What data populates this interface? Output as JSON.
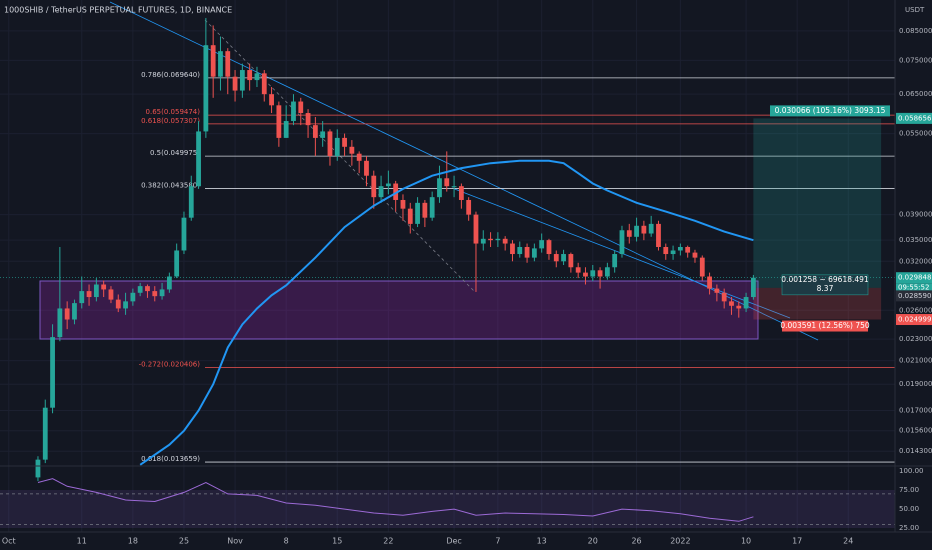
{
  "header": {
    "title": "1000SHIB / TetherUS PERPETUAL FUTURES, 1D, BINANCE",
    "currency": "USDT"
  },
  "chart_data": {
    "type": "candlestick",
    "log_scale": true,
    "xlim": [
      -1.2,
      121.4
    ],
    "ylim": [
      0.01349,
      0.0969
    ],
    "xticks": [
      {
        "value": 0,
        "label": "Oct"
      },
      {
        "value": 10,
        "label": "11"
      },
      {
        "value": 17,
        "label": "18"
      },
      {
        "value": 24,
        "label": "25"
      },
      {
        "value": 31,
        "label": "Nov"
      },
      {
        "value": 38,
        "label": "8"
      },
      {
        "value": 45,
        "label": "15"
      },
      {
        "value": 52,
        "label": "22"
      },
      {
        "value": 61,
        "label": "Dec"
      },
      {
        "value": 67,
        "label": "7"
      },
      {
        "value": 73,
        "label": "13"
      },
      {
        "value": 80,
        "label": "20"
      },
      {
        "value": 86,
        "label": "26"
      },
      {
        "value": 92,
        "label": "2022"
      },
      {
        "value": 101,
        "label": "10"
      },
      {
        "value": 108,
        "label": "17"
      },
      {
        "value": 115,
        "label": "24"
      }
    ],
    "yticks": [
      {
        "value": 0.085,
        "label": "0.085000"
      },
      {
        "value": 0.075,
        "label": "0.075000"
      },
      {
        "value": 0.065,
        "label": "0.065000"
      },
      {
        "value": 0.055,
        "label": "0.055000"
      },
      {
        "value": 0.039,
        "label": "0.039000"
      },
      {
        "value": 0.035,
        "label": "0.035000"
      },
      {
        "value": 0.032,
        "label": "0.032000"
      },
      {
        "value": 0.026,
        "label": "0.026000"
      },
      {
        "value": 0.023,
        "label": "0.023000"
      },
      {
        "value": 0.021,
        "label": "0.021000"
      },
      {
        "value": 0.019,
        "label": "0.019000"
      },
      {
        "value": 0.017,
        "label": "0.017000"
      },
      {
        "value": 0.0156,
        "label": "0.015600"
      },
      {
        "value": 0.0143,
        "label": "0.014300"
      }
    ],
    "up_color": "#26a69a",
    "down_color": "#ef5350",
    "candles": [
      [
        4,
        0.0128,
        0.014,
        0.0126,
        0.0138
      ],
      [
        5,
        0.0138,
        0.0178,
        0.0136,
        0.0172
      ],
      [
        6,
        0.0172,
        0.0245,
        0.0168,
        0.0232
      ],
      [
        7,
        0.0232,
        0.034,
        0.0228,
        0.0262
      ],
      [
        8,
        0.0262,
        0.027,
        0.024,
        0.025
      ],
      [
        9,
        0.025,
        0.0272,
        0.0245,
        0.0268
      ],
      [
        10,
        0.0268,
        0.03,
        0.0262,
        0.0282
      ],
      [
        11,
        0.0282,
        0.029,
        0.0265,
        0.0275
      ],
      [
        12,
        0.0275,
        0.0298,
        0.027,
        0.029
      ],
      [
        13,
        0.029,
        0.0295,
        0.0275,
        0.0284
      ],
      [
        14,
        0.0284,
        0.0288,
        0.0268,
        0.0272
      ],
      [
        15,
        0.0272,
        0.0278,
        0.0258,
        0.0262
      ],
      [
        16,
        0.0262,
        0.028,
        0.0255,
        0.027
      ],
      [
        17,
        0.027,
        0.0285,
        0.0265,
        0.028
      ],
      [
        18,
        0.028,
        0.0292,
        0.0276,
        0.0288
      ],
      [
        19,
        0.0288,
        0.029,
        0.0274,
        0.0282
      ],
      [
        20,
        0.0282,
        0.0288,
        0.027,
        0.0276
      ],
      [
        21,
        0.0276,
        0.0292,
        0.0272,
        0.0284
      ],
      [
        22,
        0.0284,
        0.0305,
        0.028,
        0.03
      ],
      [
        23,
        0.03,
        0.0345,
        0.0298,
        0.0335
      ],
      [
        24,
        0.0335,
        0.0395,
        0.033,
        0.0385
      ],
      [
        25,
        0.0385,
        0.046,
        0.038,
        0.044
      ],
      [
        26,
        0.044,
        0.058,
        0.0435,
        0.0555
      ],
      [
        27,
        0.0555,
        0.0898,
        0.054,
        0.08
      ],
      [
        28,
        0.08,
        0.087,
        0.064,
        0.07
      ],
      [
        29,
        0.07,
        0.083,
        0.066,
        0.078
      ],
      [
        30,
        0.078,
        0.079,
        0.065,
        0.07
      ],
      [
        31,
        0.07,
        0.072,
        0.063,
        0.066
      ],
      [
        32,
        0.066,
        0.074,
        0.064,
        0.072
      ],
      [
        33,
        0.072,
        0.074,
        0.066,
        0.069
      ],
      [
        34,
        0.069,
        0.073,
        0.067,
        0.071
      ],
      [
        35,
        0.071,
        0.072,
        0.063,
        0.065
      ],
      [
        36,
        0.065,
        0.067,
        0.06,
        0.062
      ],
      [
        37,
        0.062,
        0.063,
        0.052,
        0.054
      ],
      [
        38,
        0.054,
        0.062,
        0.054,
        0.058
      ],
      [
        39,
        0.058,
        0.065,
        0.057,
        0.063
      ],
      [
        40,
        0.063,
        0.064,
        0.057,
        0.06
      ],
      [
        41,
        0.06,
        0.061,
        0.054,
        0.057
      ],
      [
        42,
        0.057,
        0.059,
        0.05,
        0.054
      ],
      [
        43,
        0.054,
        0.058,
        0.052,
        0.0555
      ],
      [
        44,
        0.0555,
        0.056,
        0.048,
        0.05
      ],
      [
        45,
        0.05,
        0.056,
        0.049,
        0.054
      ],
      [
        46,
        0.054,
        0.055,
        0.05,
        0.052
      ],
      [
        47,
        0.052,
        0.0535,
        0.048,
        0.0505
      ],
      [
        48,
        0.0505,
        0.051,
        0.0465,
        0.049
      ],
      [
        49,
        0.049,
        0.05,
        0.044,
        0.046
      ],
      [
        50,
        0.046,
        0.047,
        0.04,
        0.042
      ],
      [
        51,
        0.042,
        0.046,
        0.041,
        0.044
      ],
      [
        52,
        0.044,
        0.047,
        0.0425,
        0.0445
      ],
      [
        53,
        0.0445,
        0.045,
        0.0395,
        0.0415
      ],
      [
        54,
        0.0415,
        0.0425,
        0.038,
        0.04
      ],
      [
        55,
        0.04,
        0.041,
        0.036,
        0.0375
      ],
      [
        56,
        0.0375,
        0.042,
        0.037,
        0.041
      ],
      [
        57,
        0.041,
        0.0415,
        0.037,
        0.0385
      ],
      [
        58,
        0.0385,
        0.043,
        0.038,
        0.042
      ],
      [
        59,
        0.042,
        0.048,
        0.041,
        0.0455
      ],
      [
        60,
        0.0455,
        0.051,
        0.043,
        0.044
      ],
      [
        61,
        0.044,
        0.046,
        0.042,
        0.044
      ],
      [
        62,
        0.044,
        0.0445,
        0.04,
        0.0415
      ],
      [
        63,
        0.0415,
        0.042,
        0.038,
        0.039
      ],
      [
        64,
        0.039,
        0.0395,
        0.0281,
        0.0345
      ],
      [
        65,
        0.0345,
        0.0365,
        0.0335,
        0.0352
      ],
      [
        66,
        0.0352,
        0.0362,
        0.034,
        0.035
      ],
      [
        67,
        0.035,
        0.0362,
        0.034,
        0.0352
      ],
      [
        68,
        0.0352,
        0.0356,
        0.0335,
        0.0345
      ],
      [
        69,
        0.0345,
        0.035,
        0.032,
        0.033
      ],
      [
        70,
        0.033,
        0.0348,
        0.0325,
        0.034
      ],
      [
        71,
        0.034,
        0.0345,
        0.0318,
        0.0325
      ],
      [
        72,
        0.0325,
        0.0345,
        0.032,
        0.0338
      ],
      [
        73,
        0.0338,
        0.036,
        0.0332,
        0.035
      ],
      [
        74,
        0.035,
        0.0352,
        0.0322,
        0.033
      ],
      [
        75,
        0.033,
        0.0335,
        0.0312,
        0.032
      ],
      [
        76,
        0.032,
        0.0336,
        0.0315,
        0.033
      ],
      [
        77,
        0.033,
        0.0332,
        0.0305,
        0.0312
      ],
      [
        78,
        0.0312,
        0.0318,
        0.0298,
        0.0305
      ],
      [
        79,
        0.0305,
        0.0312,
        0.029,
        0.03
      ],
      [
        80,
        0.03,
        0.0315,
        0.0294,
        0.0308
      ],
      [
        81,
        0.0308,
        0.0312,
        0.0285,
        0.03
      ],
      [
        82,
        0.03,
        0.0318,
        0.0296,
        0.0312
      ],
      [
        83,
        0.0312,
        0.0335,
        0.0305,
        0.033
      ],
      [
        84,
        0.033,
        0.0372,
        0.0325,
        0.0365
      ],
      [
        85,
        0.0365,
        0.0375,
        0.0345,
        0.0355
      ],
      [
        86,
        0.0355,
        0.0385,
        0.0348,
        0.0372
      ],
      [
        87,
        0.0372,
        0.038,
        0.035,
        0.036
      ],
      [
        88,
        0.036,
        0.0388,
        0.0355,
        0.0375
      ],
      [
        89,
        0.0375,
        0.038,
        0.0335,
        0.034
      ],
      [
        90,
        0.034,
        0.0345,
        0.0322,
        0.033
      ],
      [
        91,
        0.033,
        0.0342,
        0.0322,
        0.0335
      ],
      [
        92,
        0.0335,
        0.0345,
        0.0328,
        0.034
      ],
      [
        93,
        0.034,
        0.0342,
        0.0325,
        0.0332
      ],
      [
        94,
        0.0332,
        0.0336,
        0.0318,
        0.0325
      ],
      [
        95,
        0.0325,
        0.0328,
        0.0295,
        0.03
      ],
      [
        96,
        0.03,
        0.0305,
        0.0278,
        0.0285
      ],
      [
        97,
        0.0285,
        0.029,
        0.027,
        0.028
      ],
      [
        98,
        0.028,
        0.0285,
        0.0262,
        0.027
      ],
      [
        99,
        0.027,
        0.0275,
        0.0255,
        0.0265
      ],
      [
        100,
        0.0265,
        0.027,
        0.0252,
        0.0262
      ],
      [
        101,
        0.0262,
        0.028,
        0.0258,
        0.0275
      ],
      [
        102,
        0.0275,
        0.0302,
        0.0272,
        0.029848
      ]
    ],
    "moving_average": {
      "color": "#2196f3",
      "x": [
        18,
        22,
        24,
        26,
        28,
        30,
        32,
        34,
        36,
        38,
        42,
        46,
        50,
        54,
        58,
        62,
        66,
        70,
        74,
        76,
        78,
        80,
        82,
        86,
        90,
        94,
        98,
        102
      ],
      "values": [
        0.0135,
        0.0147,
        0.0156,
        0.017,
        0.019,
        0.0222,
        0.0245,
        0.0262,
        0.0277,
        0.0289,
        0.0325,
        0.037,
        0.0405,
        0.0435,
        0.046,
        0.0475,
        0.0485,
        0.049,
        0.049,
        0.0485,
        0.0465,
        0.0445,
        0.0432,
        0.041,
        0.0395,
        0.038,
        0.0363,
        0.035
      ]
    },
    "fib_levels": [
      {
        "label": "0.786(0.069640)",
        "value": 0.06964,
        "color": "#d1d4dc"
      },
      {
        "label": "0.65(0.059474)",
        "value": 0.059474,
        "color": "#ef5350"
      },
      {
        "label": "0.618(0.057307)",
        "value": 0.057307,
        "color": "#ef5350"
      },
      {
        "label": "0.5(0.049975)",
        "value": 0.049975,
        "color": "#d1d4dc"
      },
      {
        "label": "0.382(0.043580)",
        "value": 0.04358,
        "color": "#d1d4dc"
      },
      {
        "label": "-0.272(0.020406)",
        "value": 0.020406,
        "color": "#ef5350"
      },
      {
        "label": "0.618(0.013659)",
        "value": 0.013659,
        "color": "#d1d4dc"
      }
    ],
    "position": {
      "target": {
        "value": 0.058656,
        "label": "0.058656"
      },
      "entry": {
        "value": 0.02859,
        "label": "0.028590"
      },
      "stop": {
        "value": 0.024999,
        "label": "0.024999"
      },
      "target_text": "0.030066 (105.16%) 3093.15",
      "pnl_text": "0.001258 ~ 69618.491",
      "pnl_ratio": "8.37",
      "stop_text": "0.003591 (12.56%) 750"
    },
    "last_price": {
      "value": 0.029848,
      "label": "0.029848"
    },
    "countdown": "09:55:52",
    "rsi": {
      "ylim": [
        20,
        104
      ],
      "yticks": [
        {
          "value": 100,
          "label": "100.00"
        },
        {
          "value": 75,
          "label": "75.00"
        },
        {
          "value": 50,
          "label": "50.00"
        },
        {
          "value": 25,
          "label": "25.00"
        }
      ],
      "bands": [
        70,
        30
      ],
      "color": "#9c6ad6",
      "x": [
        4,
        6,
        8,
        12,
        16,
        20,
        24,
        27,
        30,
        34,
        38,
        42,
        46,
        50,
        54,
        58,
        61,
        64,
        68,
        72,
        76,
        80,
        84,
        88,
        92,
        96,
        100,
        102
      ],
      "values": [
        85,
        90,
        80,
        72,
        62,
        60,
        72,
        85,
        70,
        68,
        58,
        55,
        50,
        45,
        42,
        47,
        50,
        42,
        45,
        44,
        43,
        41,
        50,
        48,
        44,
        38,
        34,
        40
      ]
    }
  }
}
